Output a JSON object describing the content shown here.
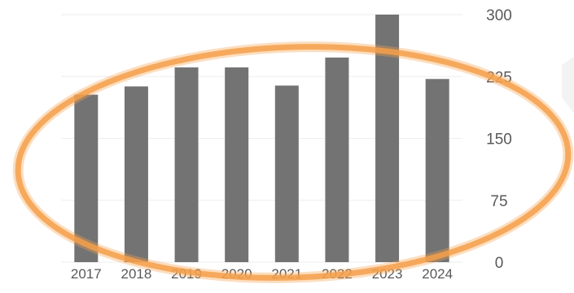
{
  "chart_data": {
    "type": "bar",
    "categories": [
      "2017",
      "2018",
      "2019",
      "2020",
      "2021",
      "2022",
      "2023",
      "2024"
    ],
    "values": [
      203,
      213,
      236,
      236,
      214,
      248,
      300,
      222
    ],
    "title": "",
    "xlabel": "",
    "ylabel": "",
    "ylim": [
      0,
      300
    ],
    "yticks": [
      "0",
      "75",
      "150",
      "225",
      "300"
    ],
    "ytick_values": [
      0,
      75,
      150,
      225,
      300
    ],
    "y_axis_side": "right",
    "grid": true,
    "legend": "none",
    "colors": {
      "bar": "#737373",
      "grid": "#eeeeee",
      "text": "#595959",
      "highlight_ellipse": "#f5a04a",
      "background_shape": "#f3f3f3"
    },
    "annotations": [
      {
        "type": "hand-drawn-ellipse",
        "color": "#f5a04a",
        "target": "bars"
      }
    ]
  }
}
